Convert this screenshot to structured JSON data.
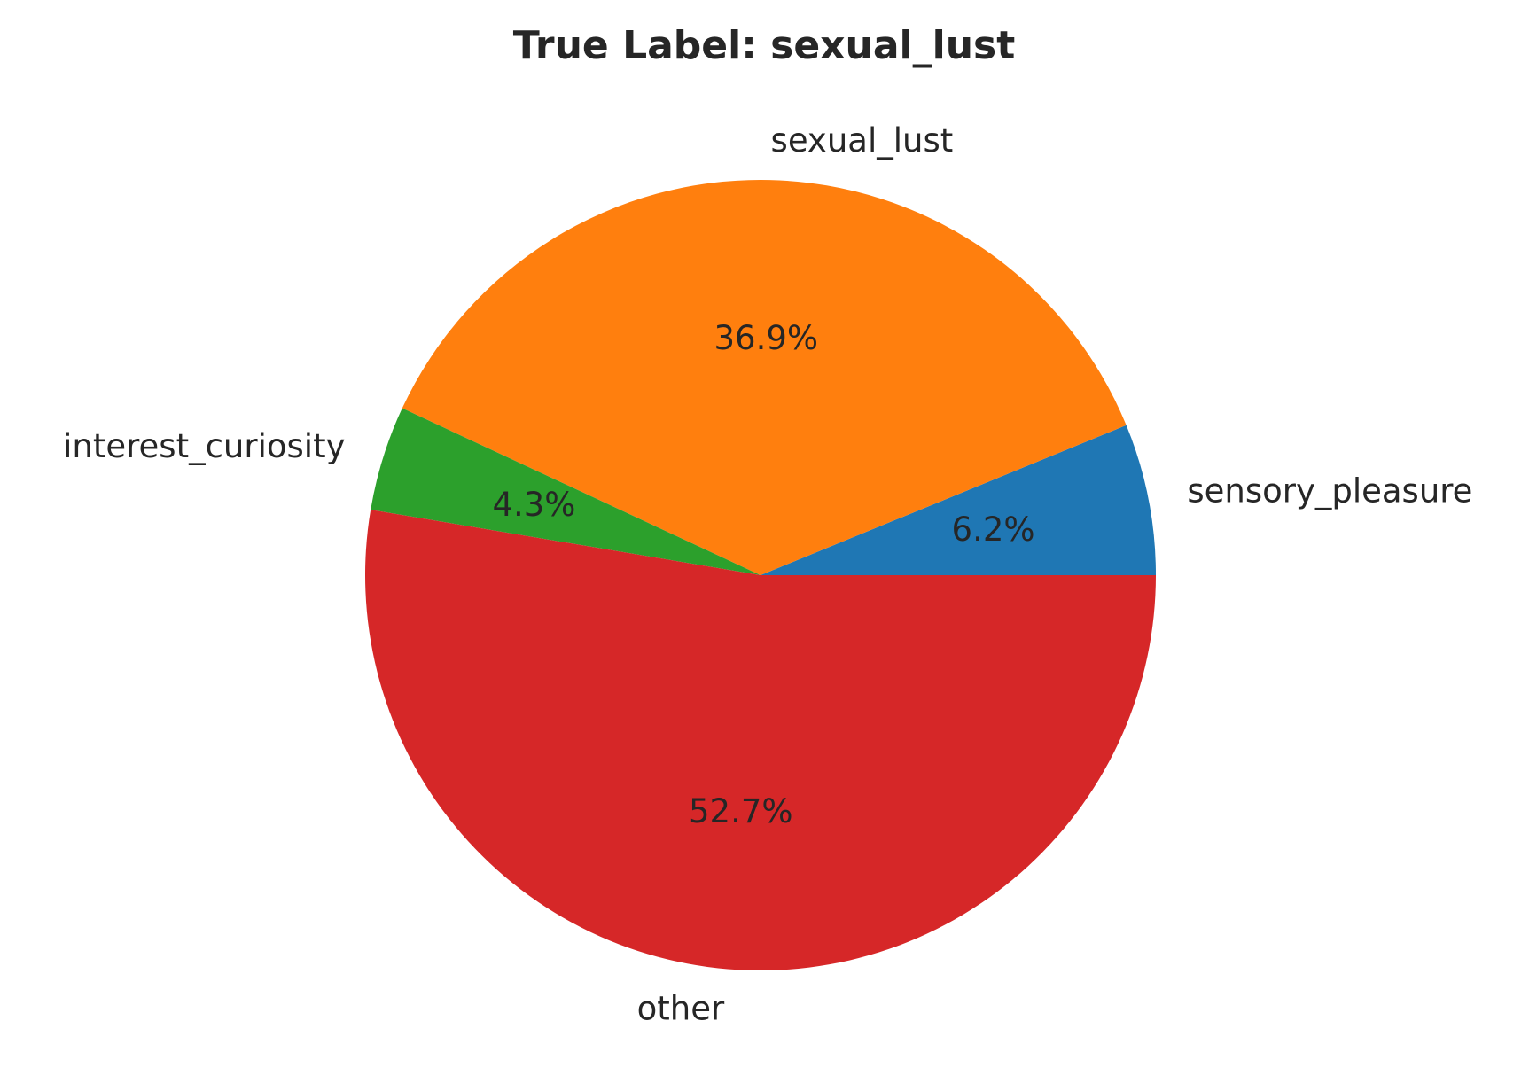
{
  "chart_data": {
    "type": "pie",
    "title": "True Label: sexual_lust",
    "start_angle_deg": 0,
    "direction": "counterclockwise",
    "slices": [
      {
        "label": "sensory_pleasure",
        "value": 6.2,
        "pct_text": "6.2%",
        "color": "#1f77b4"
      },
      {
        "label": "sexual_lust",
        "value": 36.9,
        "pct_text": "36.9%",
        "color": "#ff7f0e"
      },
      {
        "label": "interest_curiosity",
        "value": 4.3,
        "pct_text": "4.3%",
        "color": "#2ca02c"
      },
      {
        "label": "other",
        "value": 52.7,
        "pct_text": "52.7%",
        "color": "#d62728"
      }
    ]
  }
}
